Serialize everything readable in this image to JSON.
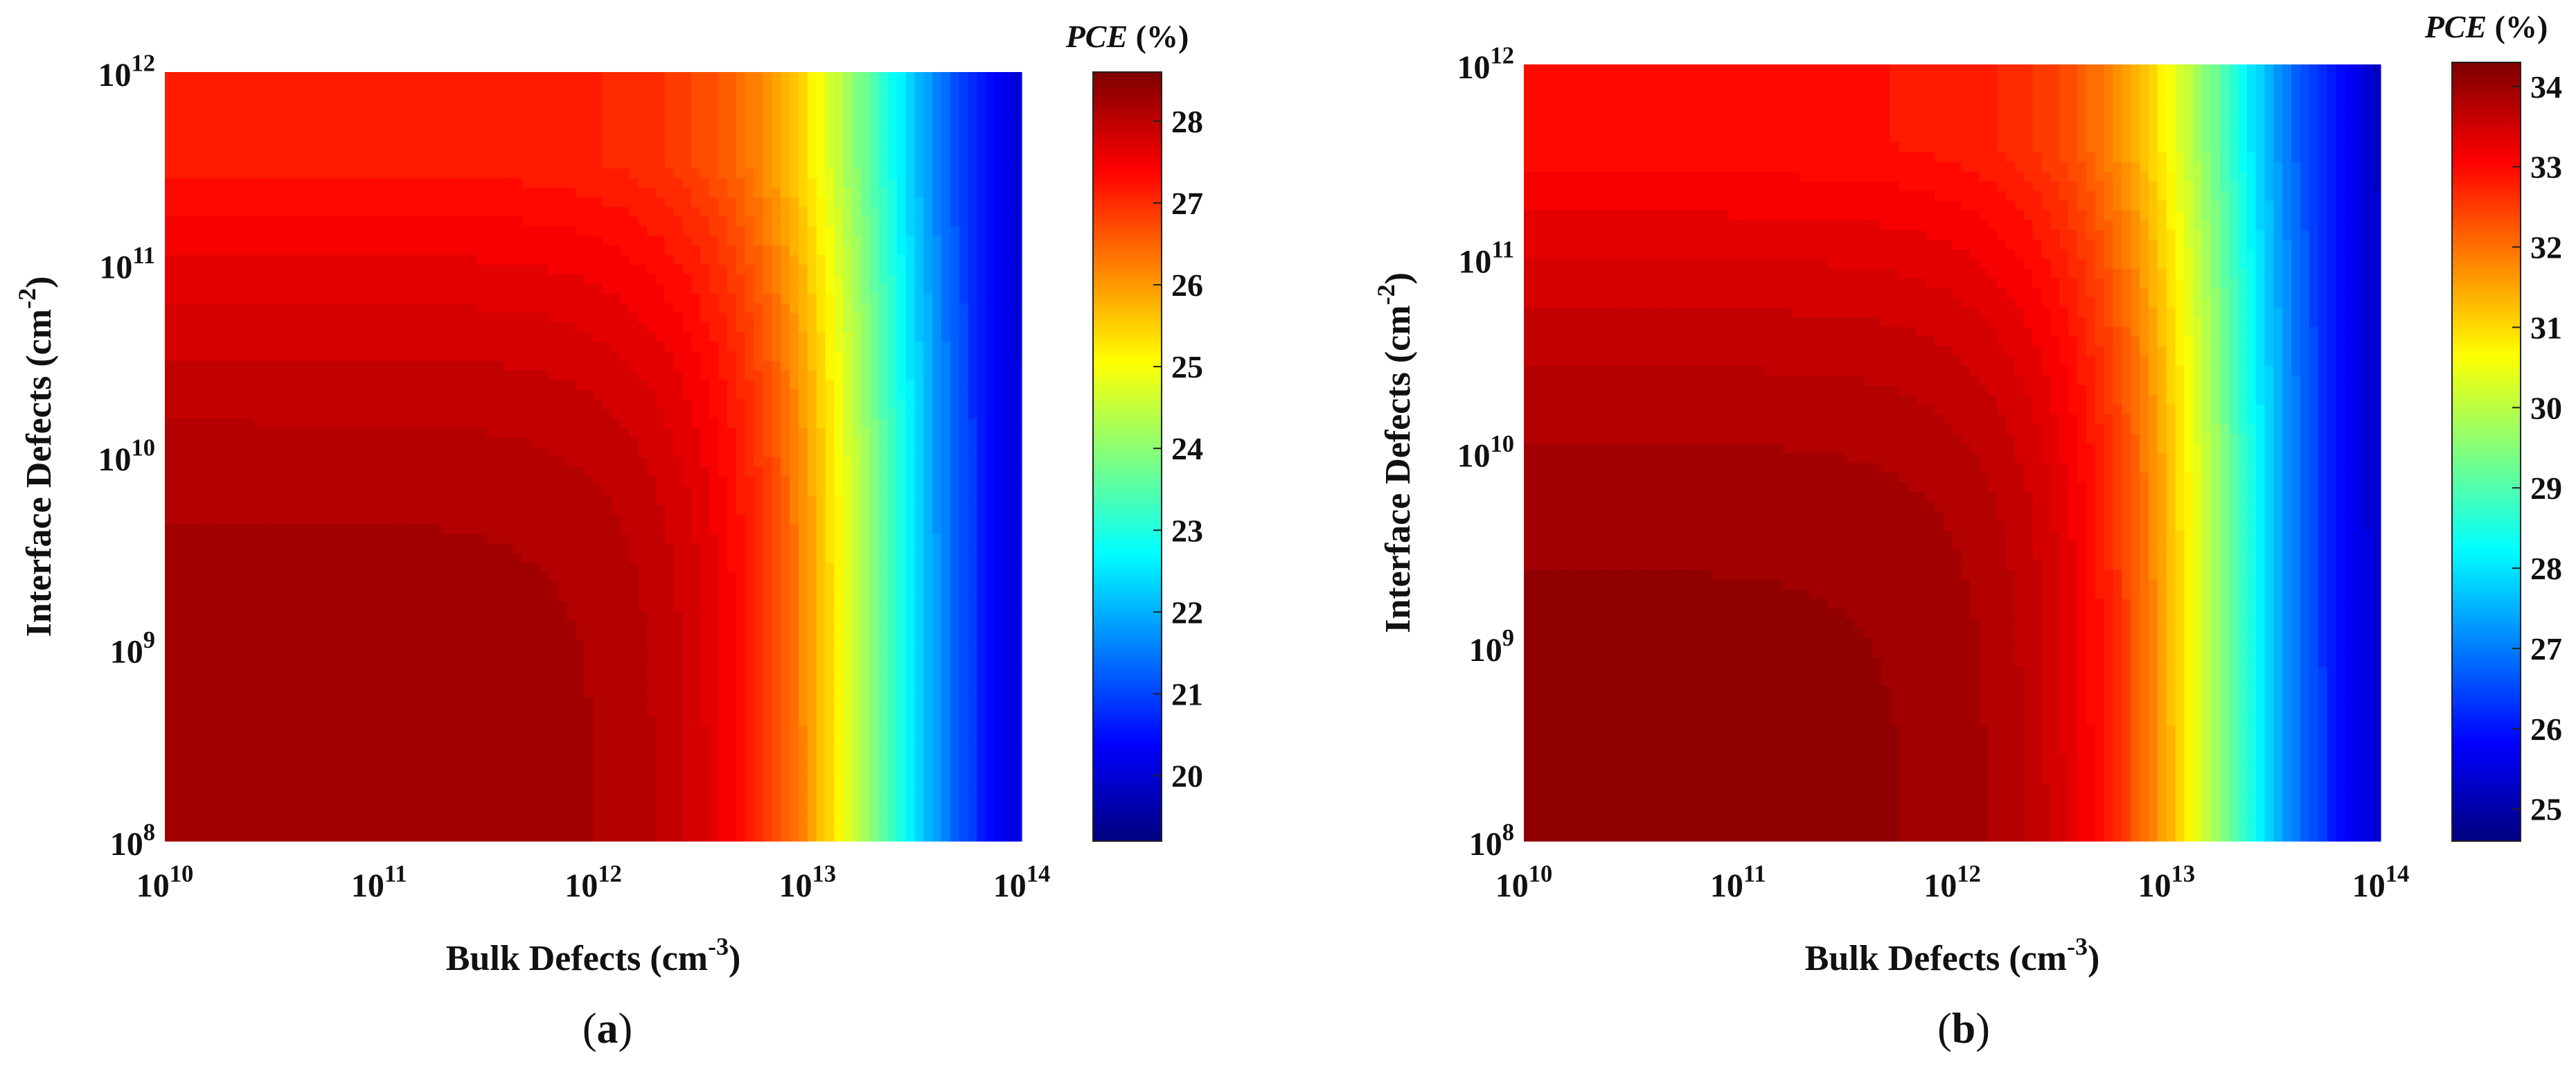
{
  "chart_data": [
    {
      "type": "heatmap",
      "panel_label": "a",
      "xlabel": {
        "base": "Bulk Defects (cm",
        "sup": "-3",
        "end": ")"
      },
      "ylabel": {
        "base": "Interface Defects (cm",
        "sup": "-2",
        "end": ")"
      },
      "x_scale": "log",
      "y_scale": "log",
      "xlim": [
        10000000000.0,
        100000000000000.0
      ],
      "ylim": [
        100000000.0,
        1000000000000.0
      ],
      "x_ticks": [
        {
          "value": 10000000000.0,
          "base": "10",
          "exp": "10"
        },
        {
          "value": 100000000000.0,
          "base": "10",
          "exp": "11"
        },
        {
          "value": 1000000000000.0,
          "base": "10",
          "exp": "12"
        },
        {
          "value": 10000000000000.0,
          "base": "10",
          "exp": "13"
        },
        {
          "value": 100000000000000.0,
          "base": "10",
          "exp": "14"
        }
      ],
      "y_ticks": [
        {
          "value": 100000000.0,
          "base": "10",
          "exp": "8"
        },
        {
          "value": 1000000000.0,
          "base": "10",
          "exp": "9"
        },
        {
          "value": 10000000000.0,
          "base": "10",
          "exp": "10"
        },
        {
          "value": 100000000000.0,
          "base": "10",
          "exp": "11"
        },
        {
          "value": 1000000000000.0,
          "base": "10",
          "exp": "12"
        }
      ],
      "colorbar": {
        "title": "PCE",
        "unit": "(%)",
        "range": [
          19.2,
          28.6
        ],
        "ticks": [
          "20",
          "21",
          "22",
          "23",
          "24",
          "25",
          "26",
          "27",
          "28"
        ]
      },
      "pce_model": {
        "max": 28.4,
        "min": 19.2,
        "bulk_knee_log": 12.3,
        "interface_knee_log": 8.9,
        "bulk_drop_center_log": 13.35,
        "bulk_drop_width": 0.3
      },
      "colormap": "jet",
      "grid": false
    },
    {
      "type": "heatmap",
      "panel_label": "b",
      "xlabel": {
        "base": "Bulk Defects (cm",
        "sup": "-3",
        "end": ")"
      },
      "ylabel": {
        "base": "Interface Defects (cm",
        "sup": "-2",
        "end": ")"
      },
      "x_scale": "log",
      "y_scale": "log",
      "xlim": [
        10000000000.0,
        100000000000000.0
      ],
      "ylim": [
        100000000.0,
        1000000000000.0
      ],
      "x_ticks": [
        {
          "value": 10000000000.0,
          "base": "10",
          "exp": "10"
        },
        {
          "value": 100000000000.0,
          "base": "10",
          "exp": "11"
        },
        {
          "value": 1000000000000.0,
          "base": "10",
          "exp": "12"
        },
        {
          "value": 10000000000000.0,
          "base": "10",
          "exp": "13"
        },
        {
          "value": 100000000000000.0,
          "base": "10",
          "exp": "14"
        }
      ],
      "y_ticks": [
        {
          "value": 100000000.0,
          "base": "10",
          "exp": "8"
        },
        {
          "value": 1000000000.0,
          "base": "10",
          "exp": "9"
        },
        {
          "value": 10000000000.0,
          "base": "10",
          "exp": "10"
        },
        {
          "value": 100000000000.0,
          "base": "10",
          "exp": "11"
        },
        {
          "value": 1000000000000.0,
          "base": "10",
          "exp": "12"
        }
      ],
      "colorbar": {
        "title": "PCE",
        "unit": "(%)",
        "range": [
          24.6,
          34.3
        ],
        "ticks": [
          "25",
          "26",
          "27",
          "28",
          "29",
          "30",
          "31",
          "32",
          "33",
          "34"
        ]
      },
      "pce_model": {
        "max": 34.2,
        "min": 24.6,
        "bulk_knee_log": 12.2,
        "interface_knee_log": 8.9,
        "bulk_drop_center_log": 13.3,
        "bulk_drop_width": 0.3
      },
      "colormap": "jet",
      "grid": false
    }
  ]
}
